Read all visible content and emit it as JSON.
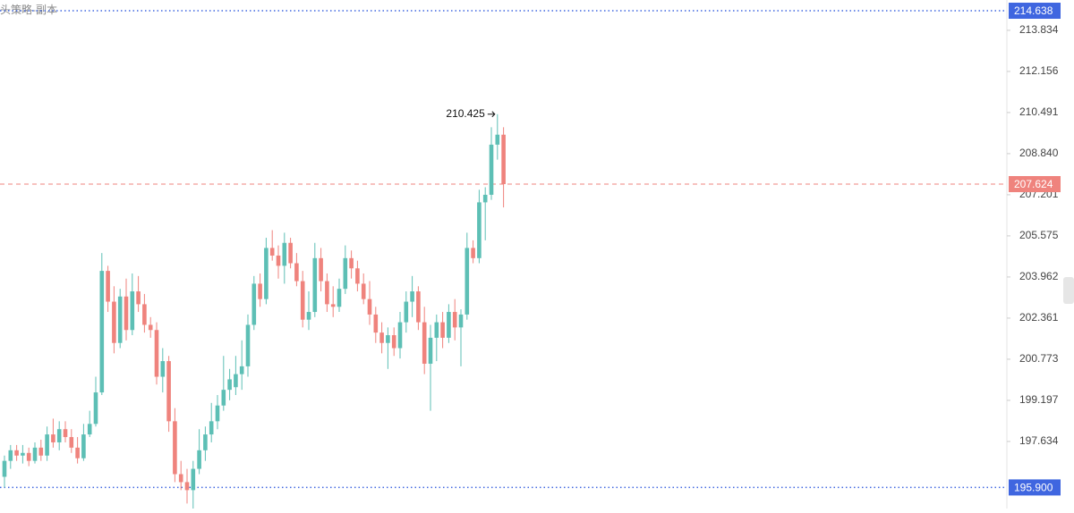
{
  "chart_data": {
    "type": "candlestick",
    "subtitle": "头策略-副本",
    "log_scale": true,
    "ylim": [
      195.11,
      215.08
    ],
    "yticks": [
      213.834,
      212.156,
      210.491,
      {
        "value": 208.84,
        "label": "208.840"
      },
      207.201,
      205.575,
      203.962,
      202.361,
      200.773,
      199.197,
      197.634
    ],
    "up_color": "#5dbfb5",
    "down_color": "#ef837d",
    "annotation": {
      "value": 210.425,
      "label": "210.425"
    },
    "price_lines": [
      {
        "value": 214.638,
        "color": "#3f66e0",
        "style": "dotted"
      },
      {
        "value": 207.624,
        "color": "#ef837d",
        "style": "dashed"
      },
      {
        "value": 195.9,
        "label": "195.900",
        "color": "#3f66e0",
        "style": "dotted"
      }
    ],
    "open": [
      196.3,
      196.9,
      197.3,
      197.1,
      197.2,
      196.9,
      197.4,
      197.1,
      197.9,
      197.6,
      198.1,
      197.8,
      197.4,
      197.0,
      197.9,
      198.3,
      199.5,
      204.2,
      203.0,
      201.4,
      203.2,
      201.9,
      203.4,
      202.9,
      202.1,
      201.9,
      200.1,
      200.7,
      198.4,
      196.4,
      196.1,
      195.8,
      196.6,
      197.3,
      197.9,
      198.4,
      199.0,
      199.6,
      199.7,
      200.2,
      200.5,
      202.1,
      203.7,
      203.1,
      205.1,
      204.8,
      204.4,
      205.3,
      204.5,
      203.8,
      202.3,
      202.6,
      204.7,
      203.8,
      202.9,
      202.8,
      203.5,
      204.7,
      204.3,
      203.7,
      203.1,
      202.5,
      201.8,
      201.4,
      201.7,
      201.2,
      202.2,
      203.0,
      203.4,
      202.2,
      200.6,
      201.6,
      202.2,
      201.6,
      202.6,
      202.0,
      202.5,
      205.1,
      204.7,
      206.9,
      207.2,
      209.2,
      209.6
    ],
    "high": [
      197.1,
      197.5,
      197.5,
      197.5,
      197.4,
      197.6,
      197.7,
      198.2,
      198.5,
      198.4,
      198.4,
      198.1,
      197.8,
      198.3,
      198.8,
      200.1,
      204.9,
      204.4,
      203.6,
      203.5,
      203.9,
      204.1,
      204.0,
      203.3,
      202.4,
      202.2,
      201.2,
      200.9,
      198.9,
      196.9,
      196.6,
      196.9,
      198.1,
      198.2,
      199.1,
      199.4,
      200.9,
      200.4,
      200.9,
      201.5,
      202.5,
      204.0,
      204.1,
      205.5,
      205.8,
      205.2,
      205.7,
      205.5,
      204.9,
      204.2,
      203.4,
      205.3,
      205.1,
      204.1,
      203.6,
      203.9,
      205.2,
      205.0,
      204.6,
      204.1,
      203.8,
      202.8,
      202.2,
      202.0,
      202.0,
      202.6,
      203.4,
      204.0,
      203.6,
      202.8,
      202.1,
      202.5,
      202.6,
      202.9,
      203.1,
      202.7,
      205.7,
      205.4,
      207.4,
      207.5,
      209.9,
      210.425,
      209.9
    ],
    "low": [
      195.9,
      196.6,
      196.9,
      196.8,
      196.7,
      196.8,
      196.9,
      196.9,
      197.4,
      197.3,
      197.6,
      197.2,
      196.8,
      196.9,
      197.8,
      198.2,
      199.4,
      202.6,
      201.0,
      201.2,
      201.5,
      201.7,
      202.6,
      201.8,
      201.6,
      199.8,
      199.5,
      198.0,
      196.1,
      195.8,
      195.3,
      195.1,
      196.4,
      196.9,
      197.6,
      198.1,
      198.8,
      199.2,
      199.4,
      199.6,
      200.1,
      201.9,
      202.8,
      202.9,
      204.6,
      203.9,
      203.7,
      204.3,
      203.6,
      202.0,
      201.9,
      202.4,
      203.4,
      202.6,
      202.4,
      202.6,
      203.3,
      203.9,
      203.4,
      202.9,
      202.1,
      201.4,
      201.0,
      200.4,
      200.9,
      200.8,
      201.8,
      202.4,
      201.9,
      200.2,
      198.8,
      200.7,
      201.2,
      201.4,
      201.5,
      200.5,
      202.3,
      204.5,
      204.5,
      205.4,
      207.0,
      208.6,
      206.7
    ],
    "close": [
      196.9,
      197.3,
      197.1,
      197.2,
      196.9,
      197.4,
      197.1,
      197.9,
      197.6,
      198.1,
      197.8,
      197.4,
      197.0,
      197.9,
      198.3,
      199.5,
      204.2,
      203.0,
      201.4,
      203.2,
      201.9,
      203.4,
      202.9,
      202.1,
      201.9,
      200.1,
      200.7,
      198.4,
      196.4,
      196.1,
      195.8,
      196.6,
      197.3,
      197.9,
      198.4,
      199.0,
      199.6,
      200.0,
      200.2,
      200.5,
      202.1,
      203.7,
      203.1,
      205.1,
      204.8,
      204.4,
      205.3,
      204.5,
      203.8,
      202.3,
      202.6,
      204.7,
      203.8,
      202.9,
      202.8,
      203.5,
      204.7,
      204.3,
      203.7,
      203.1,
      202.5,
      201.8,
      201.4,
      201.7,
      201.2,
      202.2,
      203.0,
      203.4,
      202.2,
      200.6,
      201.6,
      202.2,
      201.6,
      202.6,
      202.0,
      202.5,
      205.1,
      204.7,
      206.9,
      207.2,
      209.2,
      209.6,
      207.624
    ]
  }
}
